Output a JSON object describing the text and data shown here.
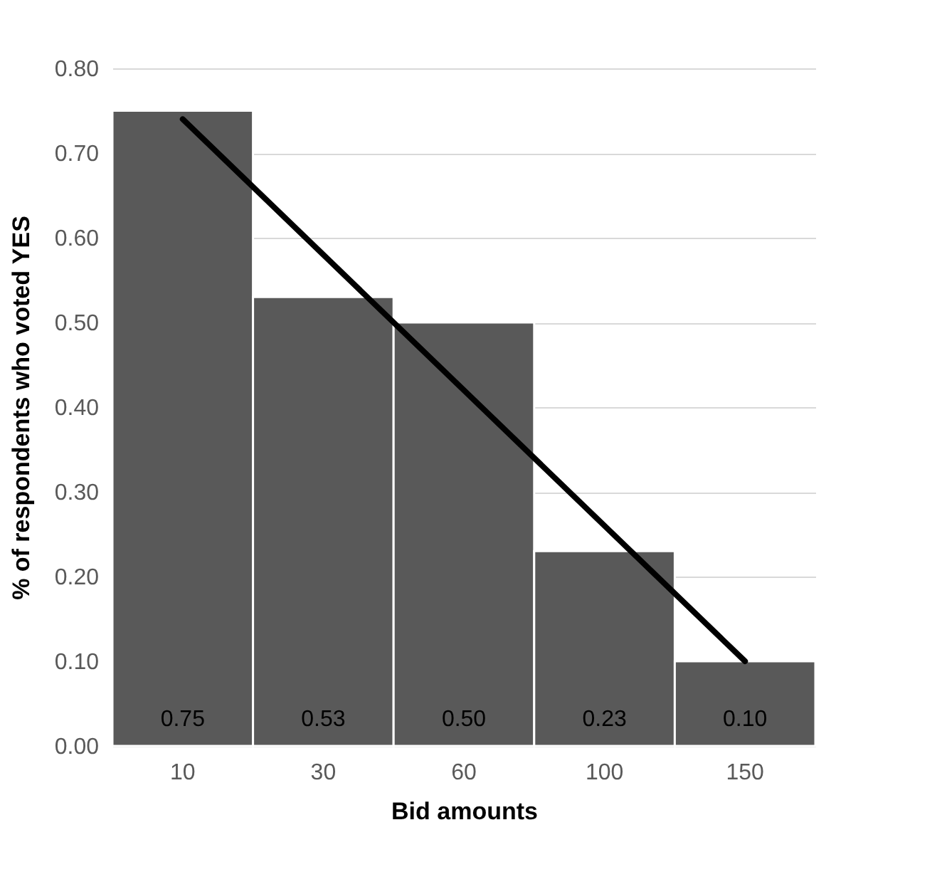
{
  "chart_data": {
    "type": "bar",
    "xlabel": "Bid amounts",
    "ylabel": "% of respondents who voted YES",
    "categories": [
      "10",
      "30",
      "60",
      "100",
      "150"
    ],
    "series": [
      {
        "color": "#595959",
        "values": [
          0.75,
          0.53,
          0.5,
          0.23,
          0.1
        ],
        "value_labels": [
          "0.75",
          "0.53",
          "0.50",
          "0.23",
          "0.10"
        ]
      },
      {
        "type": "line",
        "color": "#000000",
        "x": [
          "10",
          "150"
        ],
        "values": [
          0.74,
          0.1
        ]
      }
    ],
    "ylim": [
      0,
      0.8
    ],
    "yticks": [
      {
        "value": 0,
        "label": "0.00"
      },
      {
        "value": 0.1,
        "label": "0.10"
      },
      {
        "value": 0.2,
        "label": "0.20"
      },
      {
        "value": 0.3,
        "label": "0.30"
      },
      {
        "value": 0.4,
        "label": "0.40"
      },
      {
        "value": 0.5,
        "label": "0.50"
      },
      {
        "value": 0.6,
        "label": "0.60"
      },
      {
        "value": 0.7,
        "label": "0.70"
      },
      {
        "value": 0.8,
        "label": "0.80"
      }
    ],
    "grid": "y",
    "marker": "none",
    "line_style": "solid"
  }
}
